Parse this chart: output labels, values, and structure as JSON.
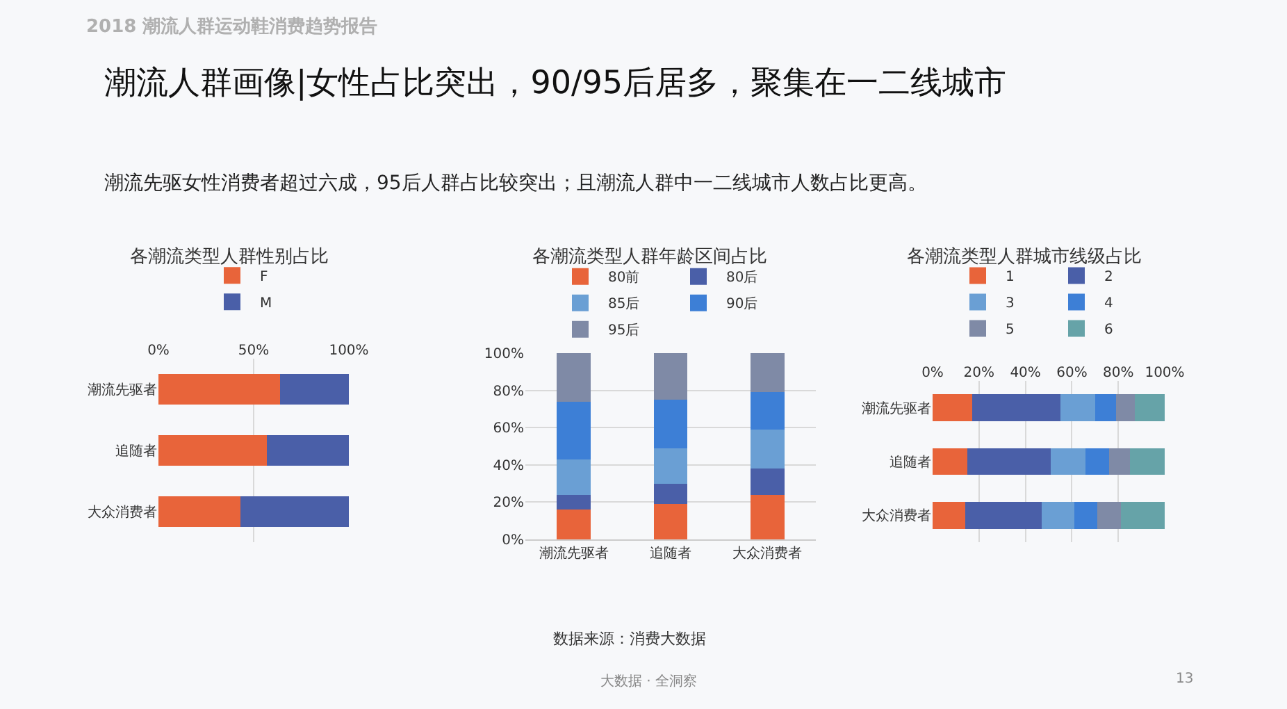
{
  "chart_data": [
    {
      "type": "other",
      "title": "潮流人群画像|女性占比突出，90/95后居多，聚集在一二线城市",
      "subtitle": "潮流先驱女性消费者超过六成，95后人群占比较突出；且潮流人群中一二线城市人数占比更高。",
      "annotations": [
        "2018 潮流人群运动鞋消费趋势报告",
        "数据来源：消费大数据",
        "大数据 · 全洞察",
        "13"
      ]
    },
    {
      "type": "bar",
      "title": "各潮流类型人群性别占比",
      "orientation": "horizontal",
      "stacked": true,
      "categories": [
        "潮流先驱者",
        "追随者",
        "大众消费者"
      ],
      "series": [
        {
          "name": "F",
          "color": "#e8643a",
          "values": [
            64,
            57,
            43
          ]
        },
        {
          "name": "M",
          "color": "#4a5fa8",
          "values": [
            36,
            43,
            57
          ]
        }
      ],
      "xlim": [
        0,
        100
      ],
      "xticks": [
        {
          "value": 0,
          "label": "0%"
        },
        {
          "value": 50,
          "label": "50%"
        },
        {
          "value": 100,
          "label": "100%"
        }
      ],
      "grid": "x",
      "legend": "top"
    },
    {
      "type": "bar",
      "title": "各潮流类型人群年龄区间占比",
      "stacked": true,
      "categories": [
        "潮流先驱者",
        "追随者",
        "大众消费者"
      ],
      "series": [
        {
          "name": "80前",
          "color": "#e8643a",
          "values": [
            16,
            19,
            24
          ]
        },
        {
          "name": "80后",
          "color": "#4a5fa8",
          "values": [
            8,
            11,
            14
          ]
        },
        {
          "name": "85后",
          "color": "#6a9fd4",
          "values": [
            19,
            19,
            21
          ]
        },
        {
          "name": "90后",
          "color": "#3d7fd6",
          "values": [
            31,
            26,
            20
          ]
        },
        {
          "name": "95后",
          "color": "#7f8aa6",
          "values": [
            26,
            25,
            21
          ]
        }
      ],
      "ylim": [
        0,
        100
      ],
      "yticks": [
        {
          "value": 0,
          "label": "0%"
        },
        {
          "value": 20,
          "label": "20%"
        },
        {
          "value": 40,
          "label": "40%"
        },
        {
          "value": 60,
          "label": "60%"
        },
        {
          "value": 80,
          "label": "80%"
        },
        {
          "value": 100,
          "label": "100%"
        }
      ],
      "grid": "y",
      "legend": "top"
    },
    {
      "type": "bar",
      "title": "各潮流类型人群城市线级占比",
      "orientation": "horizontal",
      "stacked": true,
      "categories": [
        "潮流先驱者",
        "追随者",
        "大众消费者"
      ],
      "series": [
        {
          "name": "1",
          "color": "#e8643a",
          "values": [
            17,
            15,
            14
          ]
        },
        {
          "name": "2",
          "color": "#4a5fa8",
          "values": [
            38,
            36,
            33
          ]
        },
        {
          "name": "3",
          "color": "#6a9fd4",
          "values": [
            15,
            15,
            14
          ]
        },
        {
          "name": "4",
          "color": "#3d7fd6",
          "values": [
            9,
            10,
            10
          ]
        },
        {
          "name": "5",
          "color": "#7f8aa6",
          "values": [
            8,
            9,
            10
          ]
        },
        {
          "name": "6",
          "color": "#66a3a8",
          "values": [
            13,
            15,
            19
          ]
        }
      ],
      "xlim": [
        0,
        100
      ],
      "xticks": [
        {
          "value": 0,
          "label": "0%"
        },
        {
          "value": 20,
          "label": "20%"
        },
        {
          "value": 40,
          "label": "40%"
        },
        {
          "value": 60,
          "label": "60%"
        },
        {
          "value": 80,
          "label": "80%"
        },
        {
          "value": 100,
          "label": "100%"
        }
      ],
      "grid": "x",
      "legend": "top"
    }
  ]
}
